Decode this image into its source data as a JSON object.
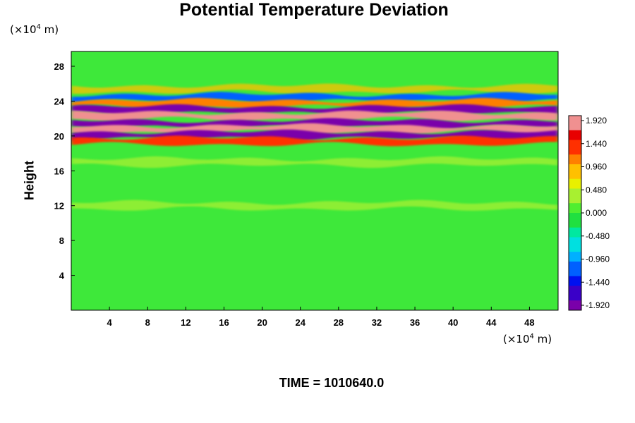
{
  "chart_data": {
    "type": "heatmap",
    "title": "Potential Temperature Deviation",
    "ylabel": "Height",
    "xlabel": "",
    "x_unit": {
      "prefix": "(×10",
      "exp": "4",
      "suffix": " m)"
    },
    "y_unit": {
      "prefix": "(×10",
      "exp": "4",
      "suffix": " m)"
    },
    "xlim": [
      0,
      51
    ],
    "ylim": [
      0,
      29.7
    ],
    "x_ticks": [
      4,
      8,
      12,
      16,
      20,
      24,
      28,
      32,
      36,
      40,
      44,
      48
    ],
    "y_ticks": [
      4,
      8,
      12,
      16,
      20,
      24,
      28
    ],
    "colorbar": {
      "ticks": [
        "1.920",
        "1.440",
        "0.960",
        "0.480",
        "0.000",
        "-0.480",
        "-0.960",
        "-1.440",
        "-1.920"
      ],
      "range": [
        -2.0,
        2.0
      ]
    },
    "bands": [
      {
        "y": 25.4,
        "value": 0.9
      },
      {
        "y": 24.4,
        "value": -1.2
      },
      {
        "y": 23.7,
        "value": 1.1
      },
      {
        "y": 23.0,
        "value": -2.0
      },
      {
        "y": 22.3,
        "value": 2.0
      },
      {
        "y": 21.4,
        "value": -2.0
      },
      {
        "y": 20.8,
        "value": 2.0
      },
      {
        "y": 20.1,
        "value": -2.0
      },
      {
        "y": 19.4,
        "value": 1.4
      },
      {
        "y": 17.0,
        "value": 0.4
      },
      {
        "y": 12.0,
        "value": 0.3
      }
    ],
    "background_value": -0.2,
    "footer": "TIME = 1010640.0"
  },
  "colors": {
    "scale": [
      "#7a00aa",
      "#3a00c8",
      "#0010f0",
      "#0060ff",
      "#00b0ff",
      "#00e0e0",
      "#00e8a0",
      "#20e040",
      "#50ee30",
      "#a8f030",
      "#e8f000",
      "#ffc000",
      "#ff8000",
      "#ff3000",
      "#e80000",
      "#f09090"
    ],
    "background": "#3ee83a"
  }
}
